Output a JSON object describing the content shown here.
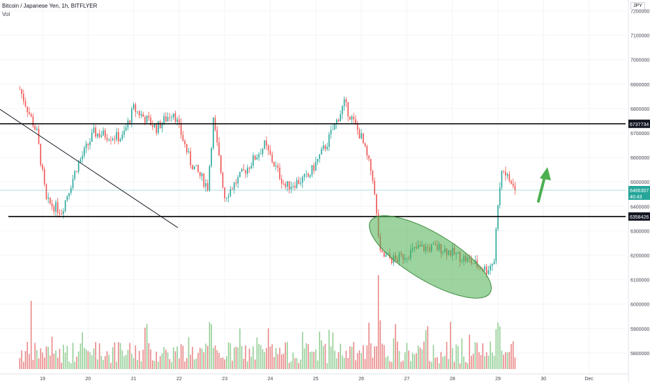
{
  "chart_data": {
    "type": "candlestick",
    "title": "Bitcoin / Japanese Yen, 1h, BITFLYER",
    "volume_label": "Vol",
    "currency": "JPY",
    "x_ticks": [
      "19",
      "20",
      "21",
      "22",
      "23",
      "24",
      "25",
      "26",
      "27",
      "28",
      "29",
      "30",
      "Dec"
    ],
    "y_ticks": [
      7200000,
      7100000,
      7000000,
      6900000,
      6800000,
      6700000,
      6600000,
      6500000,
      6400000,
      6300000,
      6200000,
      6100000,
      6000000,
      5900000,
      5800000
    ],
    "y_range": [
      5700000,
      7250000
    ],
    "horizontal_levels": [
      {
        "value": 6737734,
        "label": "6737734"
      },
      {
        "value": 6358426,
        "label": "6358426"
      }
    ],
    "last_price": {
      "value": 6466307,
      "label": "6466307",
      "countdown": "40:43"
    },
    "approx_close_path": [
      {
        "date": "Nov 18 12:00",
        "close": 6880000
      },
      {
        "date": "Nov 18 21:00",
        "close": 6700000
      },
      {
        "date": "Nov 19 02:00",
        "close": 6420000
      },
      {
        "date": "Nov 19 10:00",
        "close": 6380000
      },
      {
        "date": "Nov 19 18:00",
        "close": 6560000
      },
      {
        "date": "Nov 20 03:00",
        "close": 6700000
      },
      {
        "date": "Nov 20 18:00",
        "close": 6680000
      },
      {
        "date": "Nov 21 00:00",
        "close": 6800000
      },
      {
        "date": "Nov 21 12:00",
        "close": 6720000
      },
      {
        "date": "Nov 21 21:00",
        "close": 6790000
      },
      {
        "date": "Nov 22 06:00",
        "close": 6580000
      },
      {
        "date": "Nov 22 15:00",
        "close": 6480000
      },
      {
        "date": "Nov 22 18:00",
        "close": 6750000
      },
      {
        "date": "Nov 23 00:00",
        "close": 6440000
      },
      {
        "date": "Nov 23 12:00",
        "close": 6560000
      },
      {
        "date": "Nov 23 21:00",
        "close": 6650000
      },
      {
        "date": "Nov 24 08:00",
        "close": 6480000
      },
      {
        "date": "Nov 24 20:00",
        "close": 6520000
      },
      {
        "date": "Nov 25 06:00",
        "close": 6660000
      },
      {
        "date": "Nov 25 15:00",
        "close": 6820000
      },
      {
        "date": "Nov 26 00:00",
        "close": 6680000
      },
      {
        "date": "Nov 26 06:00",
        "close": 6520000
      },
      {
        "date": "Nov 26 10:00",
        "close": 6200000
      },
      {
        "date": "Nov 26 18:00",
        "close": 6180000
      },
      {
        "date": "Nov 27 06:00",
        "close": 6230000
      },
      {
        "date": "Nov 27 18:00",
        "close": 6230000
      },
      {
        "date": "Nov 28 08:00",
        "close": 6180000
      },
      {
        "date": "Nov 28 18:00",
        "close": 6140000
      },
      {
        "date": "Nov 28 22:00",
        "close": 6180000
      },
      {
        "date": "Nov 29 00:00",
        "close": 6420000
      },
      {
        "date": "Nov 29 02:00",
        "close": 6560000
      },
      {
        "date": "Nov 29 09:00",
        "close": 6466307
      }
    ],
    "annotations": [
      {
        "type": "trendline",
        "from": {
          "date": "Nov 18 12:00",
          "price": 6770000
        },
        "to": {
          "date": "Nov 23 00:00",
          "price": 6310000
        }
      },
      {
        "type": "ellipse",
        "center": {
          "date": "Nov 27 15:00",
          "price": 6210000
        },
        "color": "#4caf50"
      },
      {
        "type": "arrow",
        "direction": "up",
        "color": "#4caf50"
      }
    ],
    "colors": {
      "up": "#26a69a",
      "down": "#ef5350",
      "vol_up": "#81c784",
      "vol_down": "#e57373",
      "level_line": "#000000",
      "last_price": "#26a69a"
    }
  }
}
